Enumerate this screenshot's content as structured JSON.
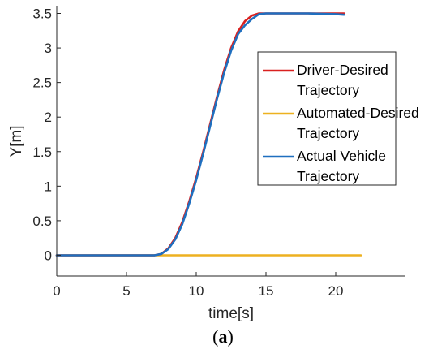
{
  "chart_data": {
    "type": "line",
    "xlabel": "time[s]",
    "ylabel": "Y[m]",
    "xlim": [
      0,
      25
    ],
    "ylim": [
      -0.3,
      3.6
    ],
    "xticks": [
      0,
      5,
      10,
      15,
      20
    ],
    "yticks": [
      0,
      0.5,
      1,
      1.5,
      2,
      2.5,
      3,
      3.5
    ],
    "xtick_labels": [
      "0",
      "5",
      "10",
      "15",
      "20"
    ],
    "ytick_labels": [
      "0",
      "0.5",
      "1",
      "1.5",
      "2",
      "2.5",
      "3",
      "3.5"
    ],
    "grid": false,
    "legend_position": "top-right (inside)",
    "series": [
      {
        "name": "Driver-Desired Trajectory",
        "legend_lines": [
          "Driver-Desired",
          "Trajectory"
        ],
        "color": "#d92120",
        "x": [
          0,
          7.0,
          7.5,
          8.0,
          8.5,
          9.0,
          9.5,
          10.0,
          10.5,
          11.0,
          11.5,
          12.0,
          12.5,
          13.0,
          13.5,
          14.0,
          14.5,
          15.0,
          16.0,
          18.0,
          20.0,
          20.6
        ],
        "y": [
          0,
          0,
          0.02,
          0.1,
          0.25,
          0.48,
          0.78,
          1.12,
          1.5,
          1.9,
          2.3,
          2.68,
          3.0,
          3.24,
          3.39,
          3.47,
          3.5,
          3.5,
          3.5,
          3.5,
          3.5,
          3.5
        ]
      },
      {
        "name": "Automated-Desired Trajectory",
        "legend_lines": [
          "Automated-Desired",
          "Trajectory"
        ],
        "color": "#edb120",
        "x": [
          0,
          7.5,
          21.8
        ],
        "y": [
          0,
          0,
          0
        ]
      },
      {
        "name": "Actual Vehicle Trajectory",
        "legend_lines": [
          "Actual Vehicle",
          "Trajectory"
        ],
        "color": "#1f6fbf",
        "x": [
          0,
          7.0,
          7.5,
          8.0,
          8.5,
          9.0,
          9.5,
          10.0,
          10.5,
          11.0,
          11.5,
          12.0,
          12.5,
          13.0,
          13.5,
          14.0,
          14.5,
          15.0,
          16.0,
          18.0,
          20.0,
          20.6
        ],
        "y": [
          0,
          0,
          0.02,
          0.09,
          0.23,
          0.45,
          0.75,
          1.09,
          1.47,
          1.87,
          2.27,
          2.64,
          2.96,
          3.2,
          3.33,
          3.42,
          3.49,
          3.5,
          3.5,
          3.5,
          3.49,
          3.48
        ]
      }
    ]
  },
  "caption": {
    "open": "(",
    "letter": "a",
    "close": ")"
  }
}
